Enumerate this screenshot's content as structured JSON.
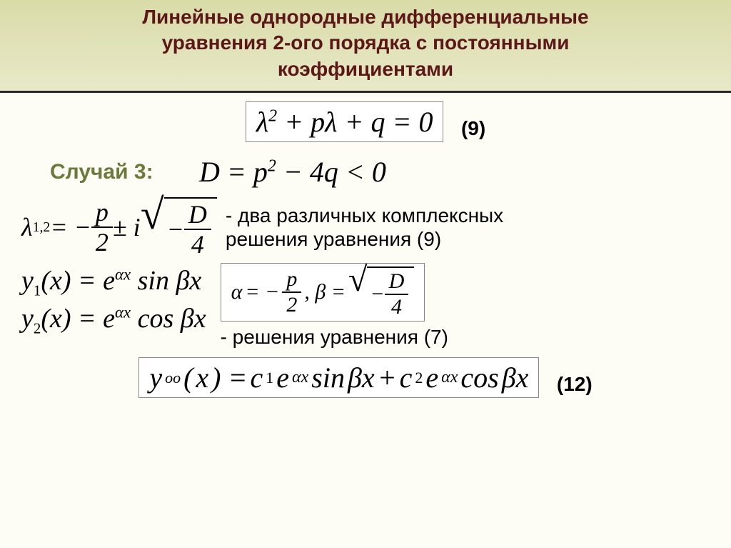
{
  "header": {
    "title_line1": "Линейные однородные дифференциальные",
    "title_line2": "уравнения 2-ого порядка с постоянными",
    "title_line3": "коэффициентами"
  },
  "equations": {
    "characteristic": "λ² + pλ + q = 0",
    "char_num": "(9)",
    "case_label": "Случай 3:",
    "discriminant": "D = p² − 4q < 0",
    "lambda_prefix": "λ",
    "lambda_sub": "1,2",
    "eq_sign": " = −",
    "p_num": "p",
    "p_den": "2",
    "pm_i": " ± i",
    "neg": "−",
    "D_num": "D",
    "D_den": "4",
    "complex_desc1": "- два различных комплексных",
    "complex_desc2": "решения уравнения (9)",
    "y1": "y₁(x) = eᵅˣ sin βx",
    "y2": "y₂(x) = eᵅˣ cos βx",
    "alpha_eq": "α = −",
    "ab_p_num": "p",
    "ab_p_den": "2",
    "comma_beta": ", β = ",
    "ab_D_num": "D",
    "ab_D_den": "4",
    "sol7_desc": "- решения уравнения (7)",
    "general_lhs": "yₒₒ(x) = c₁eᵅˣ sin βx + c₂eᵅˣ cos βx",
    "gen_num": "(12)"
  },
  "styling": {
    "title_color": "#5c1818",
    "case_color": "#6b7a3a",
    "header_bg_top": "#d9dba8",
    "header_bg_bottom": "#e8e9c8",
    "body_bg": "#fdfdf5",
    "title_fontsize": 28,
    "math_fontsize": 40,
    "desc_fontsize": 28
  }
}
